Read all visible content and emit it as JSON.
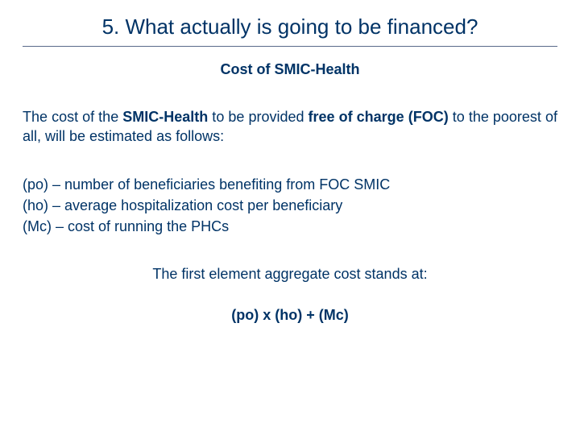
{
  "colors": {
    "heading": "#003366",
    "text": "#003366",
    "rule": "#5a6a8a",
    "background": "#ffffff"
  },
  "typography": {
    "title_fontsize": 26,
    "subtitle_fontsize": 18,
    "body_fontsize": 18,
    "font_family": "Verdana"
  },
  "title": "5. What actually is going to be financed?",
  "subtitle": "Cost of SMIC-Health",
  "intro": {
    "line1_pre": "The cost of the ",
    "smic_bold": "SMIC-Health",
    "line1_mid": " to be provided ",
    "foc_bold": "free of charge (FOC)",
    "line_rest": " to the poorest of all, will be estimated as follows:"
  },
  "definitions": [
    {
      "sym": "(po)",
      "desc": "– number of beneficiaries benefiting from FOC SMIC"
    },
    {
      "sym": "(ho)",
      "desc": "– average hospitalization cost per beneficiary"
    },
    {
      "sym": "(Mc)",
      "desc": "– cost of running the PHCs"
    }
  ],
  "aggregate_text": "The first element aggregate cost stands at:",
  "formula": "(po) x (ho) + (Mc)"
}
